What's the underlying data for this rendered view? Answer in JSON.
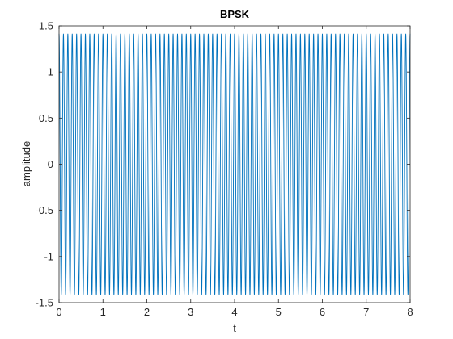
{
  "chart_data": {
    "type": "line",
    "title": "BPSK",
    "xlabel": "t",
    "ylabel": "amplitude",
    "xlim": [
      0,
      8
    ],
    "ylim": [
      -1.5,
      1.5
    ],
    "x_ticks": [
      "0",
      "1",
      "2",
      "3",
      "4",
      "5",
      "6",
      "7",
      "8"
    ],
    "y_ticks": [
      "1.5",
      "1",
      "0.5",
      "0",
      "-0.5",
      "-1",
      "-1.5"
    ],
    "grid": false,
    "legend": "none",
    "series": [
      {
        "amplitude": 1.414,
        "frequency": 10,
        "cycles_over_range": 80,
        "x_range": [
          0,
          8
        ],
        "color": "#0072BD"
      }
    ]
  }
}
